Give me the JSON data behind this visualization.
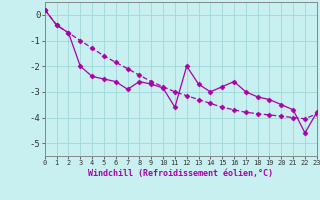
{
  "xlabel": "Windchill (Refroidissement éolien,°C)",
  "background_color": "#c8f0f0",
  "line_color": "#aa00aa",
  "x_line1": [
    0,
    1,
    2,
    3,
    4,
    5,
    6,
    7,
    8,
    9,
    10,
    11,
    12,
    13,
    14,
    15,
    16,
    17,
    18,
    19,
    20,
    21,
    22,
    23
  ],
  "y_line1": [
    0.2,
    -0.4,
    -0.7,
    -2.0,
    -2.4,
    -2.5,
    -2.6,
    -2.9,
    -2.6,
    -2.7,
    -2.85,
    -3.6,
    -2.0,
    -2.7,
    -3.0,
    -2.8,
    -2.6,
    -3.0,
    -3.2,
    -3.3,
    -3.5,
    -3.7,
    -4.6,
    -3.8
  ],
  "x_line2": [
    0,
    1,
    2,
    3,
    4,
    5,
    6,
    7,
    8,
    9,
    10,
    11,
    12,
    13,
    14,
    15,
    16,
    17,
    18,
    19,
    20,
    21,
    22,
    23
  ],
  "y_line2": [
    0.2,
    -0.4,
    -0.7,
    -1.0,
    -1.3,
    -1.6,
    -1.85,
    -2.1,
    -2.35,
    -2.6,
    -2.8,
    -3.0,
    -3.15,
    -3.3,
    -3.45,
    -3.6,
    -3.7,
    -3.8,
    -3.85,
    -3.9,
    -3.95,
    -4.0,
    -4.05,
    -3.85
  ],
  "ylim": [
    -5.5,
    0.5
  ],
  "xlim": [
    0,
    23
  ],
  "yticks": [
    0,
    -1,
    -2,
    -3,
    -4,
    -5
  ],
  "grid_color": "#a0d8d8",
  "marker": "D",
  "markersize": 2.5,
  "linewidth": 0.9
}
